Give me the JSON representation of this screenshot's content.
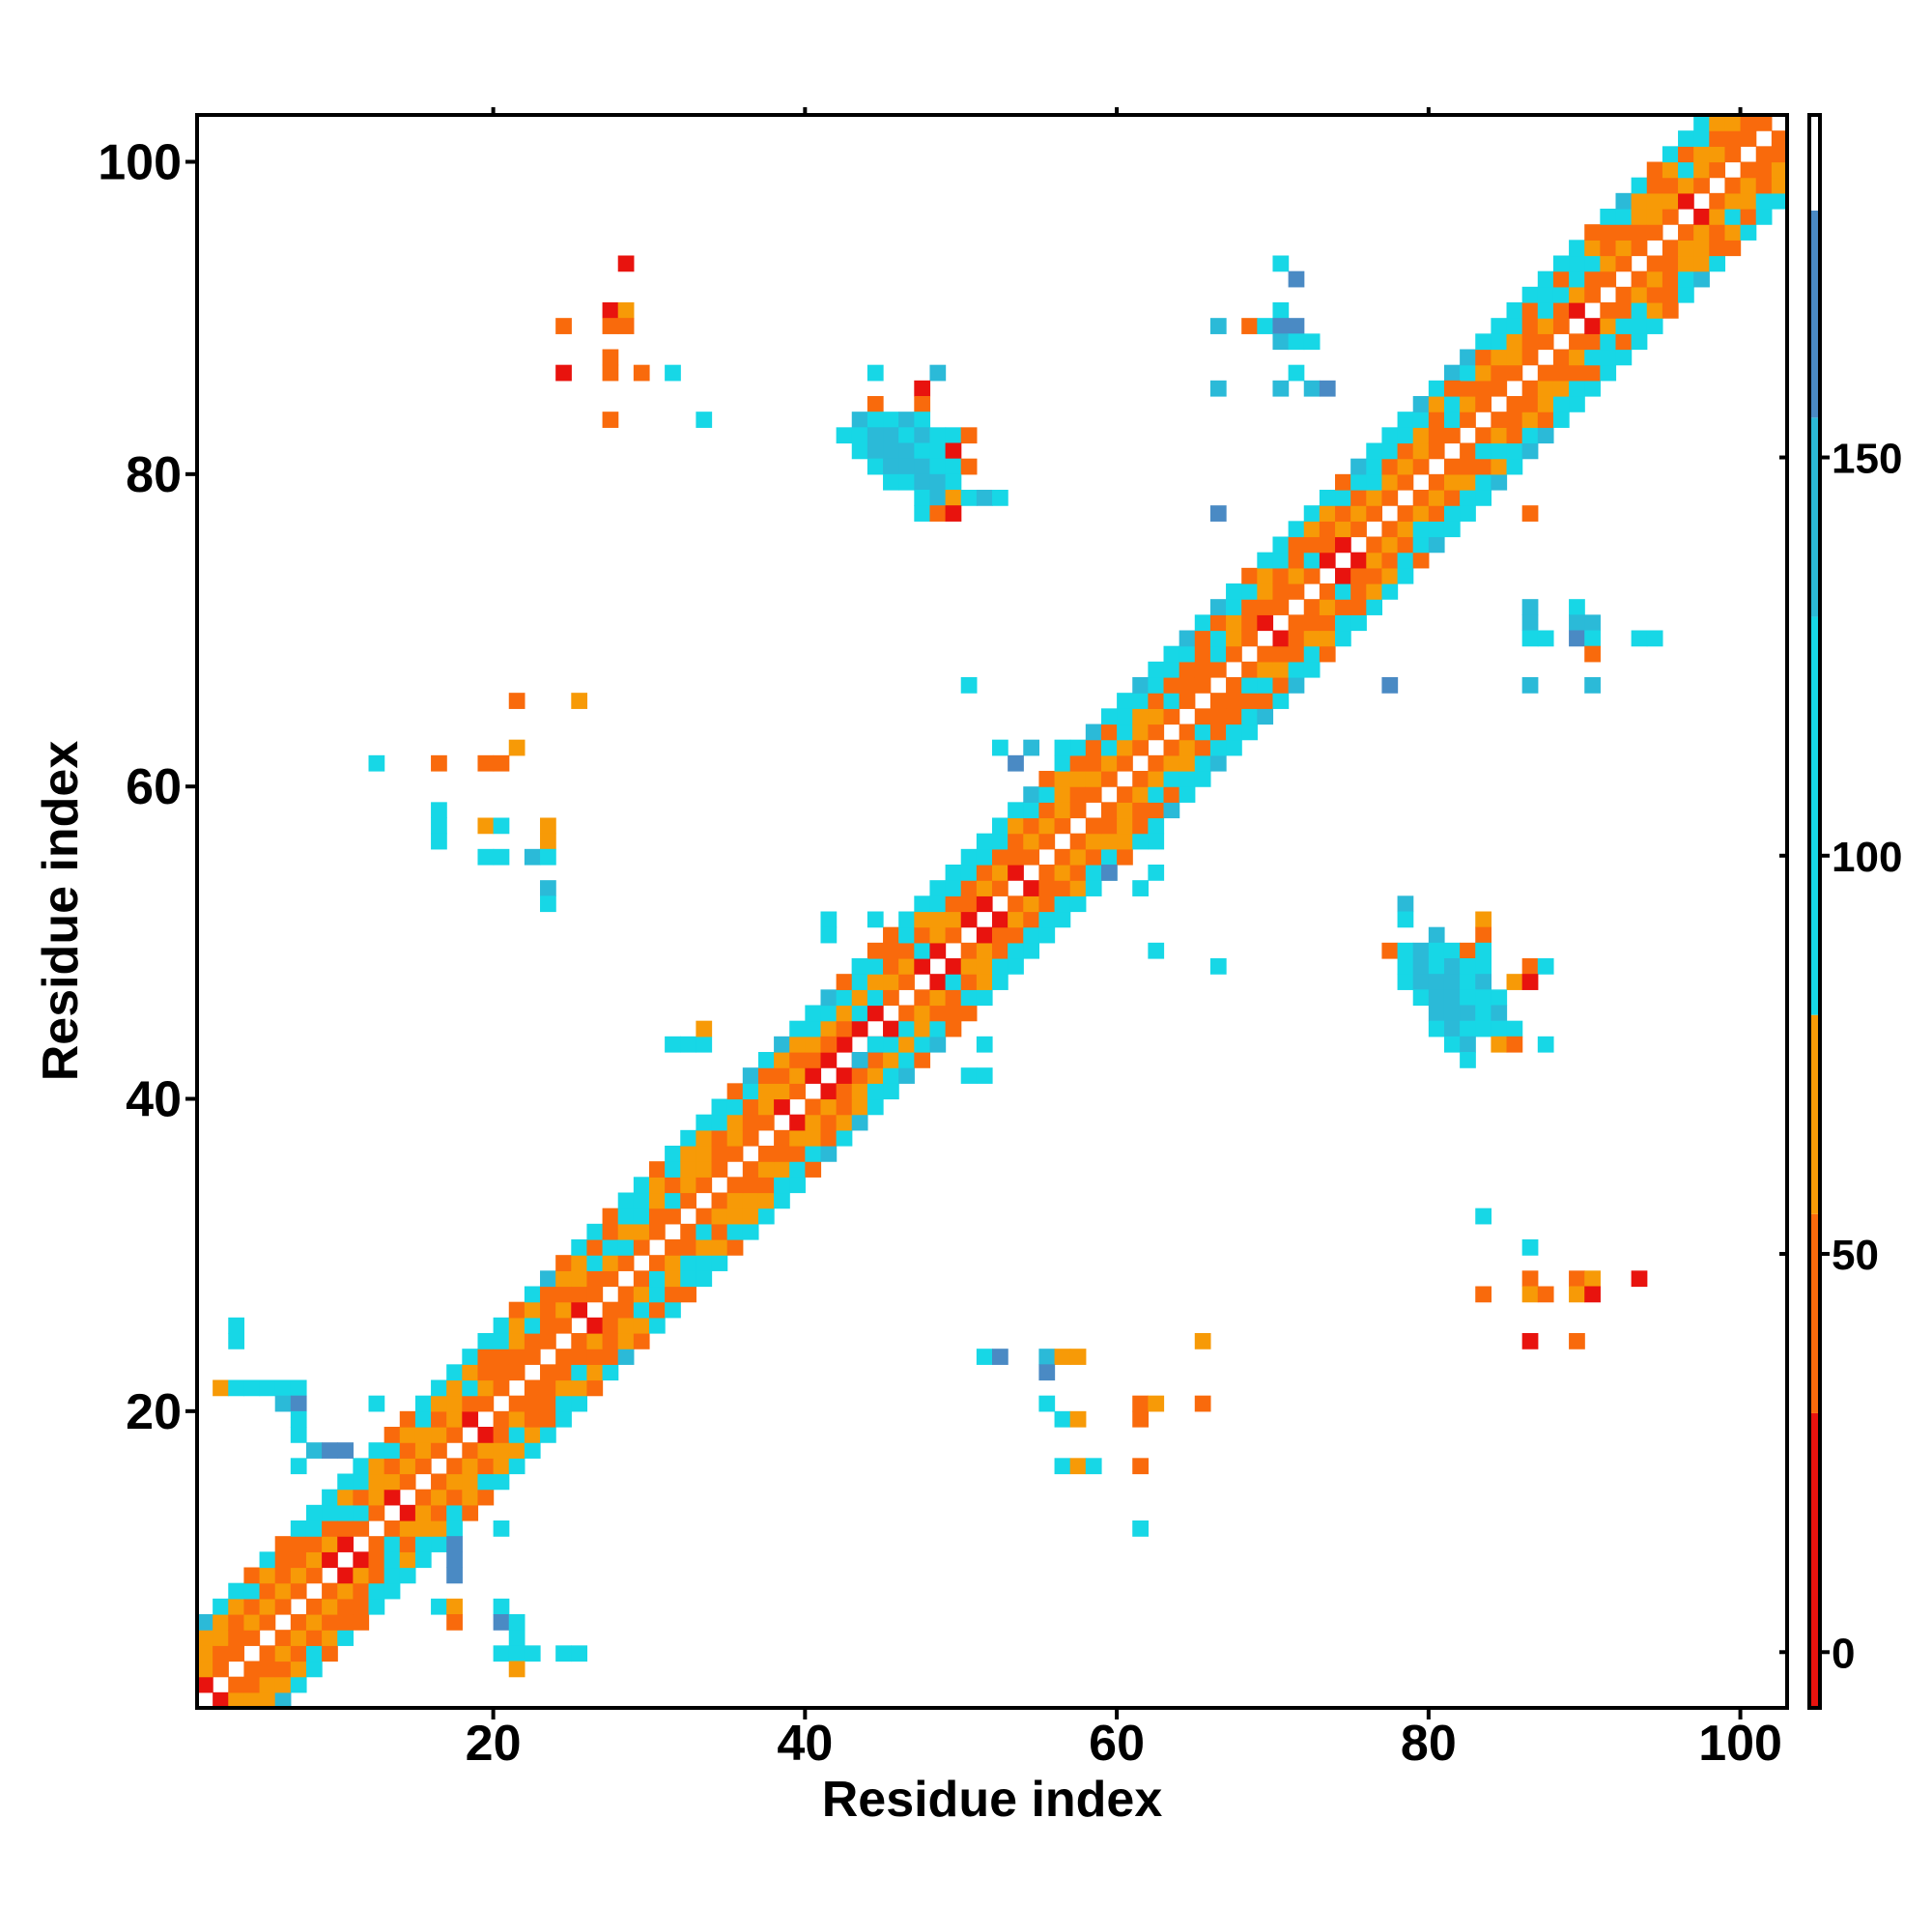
{
  "chart_data": {
    "type": "heatmap",
    "title": "",
    "xlabel": "Residue index",
    "ylabel": "Residue index",
    "xlim": [
      1,
      103
    ],
    "ylim": [
      1,
      103
    ],
    "x_ticks": [
      20,
      40,
      60,
      80,
      100
    ],
    "y_ticks": [
      20,
      40,
      60,
      80,
      100
    ],
    "colorbar": {
      "ticks": [
        0,
        50,
        100,
        150
      ],
      "range": [
        -7,
        193
      ],
      "bands": [
        {
          "from": -7,
          "to": 30,
          "color": "#e8130e"
        },
        {
          "from": 30,
          "to": 55,
          "color": "#f96a0c"
        },
        {
          "from": 55,
          "to": 80,
          "color": "#f79a07"
        },
        {
          "from": 80,
          "to": 130,
          "color": "#17d7e6"
        },
        {
          "from": 130,
          "to": 155,
          "color": "#2bbad8"
        },
        {
          "from": 155,
          "to": 181,
          "color": "#4a8ac4"
        },
        {
          "from": 181,
          "to": 193,
          "color": "#ffffff"
        }
      ]
    },
    "color_scale": {
      "very_low": "#e8130e",
      "low": "#f96a0c",
      "mid_low": "#f79a07",
      "high": "#17d7e6",
      "higher": "#2bbad8",
      "highest": "#4a8ac4"
    },
    "offdiagonal_cells": [
      [
        28,
        93,
        1
      ],
      [
        24,
        89,
        2
      ],
      [
        27,
        90,
        1
      ],
      [
        28,
        90,
        3
      ],
      [
        27,
        89,
        2
      ],
      [
        28,
        89,
        2
      ],
      [
        24,
        86,
        1
      ],
      [
        27,
        87,
        2
      ],
      [
        27,
        86,
        2
      ],
      [
        29,
        86,
        2
      ],
      [
        31,
        86,
        4
      ],
      [
        27,
        83,
        2
      ],
      [
        33,
        83,
        4
      ],
      [
        44,
        86,
        4
      ],
      [
        48,
        86,
        5
      ],
      [
        47,
        85,
        1
      ],
      [
        44,
        84,
        2
      ],
      [
        47,
        84,
        2
      ],
      [
        43,
        83,
        5
      ],
      [
        44,
        83,
        4
      ],
      [
        45,
        83,
        4
      ],
      [
        46,
        83,
        5
      ],
      [
        47,
        83,
        4
      ],
      [
        42,
        82,
        4
      ],
      [
        43,
        82,
        4
      ],
      [
        44,
        82,
        5
      ],
      [
        45,
        82,
        5
      ],
      [
        46,
        82,
        4
      ],
      [
        47,
        82,
        5
      ],
      [
        48,
        82,
        4
      ],
      [
        49,
        82,
        4
      ],
      [
        50,
        82,
        2
      ],
      [
        43,
        81,
        4
      ],
      [
        44,
        81,
        5
      ],
      [
        45,
        81,
        5
      ],
      [
        46,
        81,
        5
      ],
      [
        47,
        81,
        4
      ],
      [
        48,
        81,
        4
      ],
      [
        49,
        81,
        1
      ],
      [
        44,
        80,
        4
      ],
      [
        45,
        80,
        5
      ],
      [
        46,
        80,
        5
      ],
      [
        47,
        80,
        5
      ],
      [
        48,
        80,
        4
      ],
      [
        49,
        80,
        4
      ],
      [
        50,
        80,
        2
      ],
      [
        45,
        79,
        4
      ],
      [
        46,
        79,
        4
      ],
      [
        47,
        79,
        5
      ],
      [
        48,
        79,
        5
      ],
      [
        49,
        79,
        4
      ],
      [
        47,
        78,
        4
      ],
      [
        48,
        78,
        5
      ],
      [
        49,
        78,
        3
      ],
      [
        50,
        78,
        4
      ],
      [
        51,
        78,
        5
      ],
      [
        52,
        78,
        4
      ],
      [
        47,
        77,
        4
      ],
      [
        48,
        77,
        2
      ],
      [
        49,
        77,
        1
      ],
      [
        70,
        93,
        4
      ],
      [
        71,
        92,
        6
      ],
      [
        70,
        90,
        4
      ],
      [
        66,
        89,
        5
      ],
      [
        68,
        89,
        2
      ],
      [
        69,
        89,
        4
      ],
      [
        70,
        89,
        6
      ],
      [
        71,
        89,
        6
      ],
      [
        70,
        88,
        5
      ],
      [
        71,
        88,
        4
      ],
      [
        72,
        88,
        4
      ],
      [
        66,
        85,
        5
      ],
      [
        70,
        85,
        5
      ],
      [
        71,
        86,
        4
      ],
      [
        72,
        85,
        5
      ],
      [
        73,
        85,
        6
      ],
      [
        66,
        77,
        6
      ],
      [
        86,
        77,
        2
      ],
      [
        81,
        85,
        2
      ],
      [
        21,
        65,
        2
      ],
      [
        25,
        65,
        3
      ],
      [
        21,
        62,
        3
      ],
      [
        12,
        61,
        4
      ],
      [
        16,
        61,
        2
      ],
      [
        19,
        61,
        2
      ],
      [
        20,
        61,
        2
      ],
      [
        16,
        58,
        4
      ],
      [
        16,
        57,
        4
      ],
      [
        16,
        56,
        4
      ],
      [
        19,
        57,
        3
      ],
      [
        20,
        57,
        4
      ],
      [
        23,
        57,
        3
      ],
      [
        23,
        56,
        3
      ],
      [
        19,
        55,
        4
      ],
      [
        20,
        55,
        4
      ],
      [
        22,
        55,
        5
      ],
      [
        23,
        55,
        4
      ],
      [
        23,
        53,
        5
      ],
      [
        23,
        52,
        4
      ],
      [
        41,
        51,
        4
      ],
      [
        41,
        50,
        4
      ],
      [
        44,
        51,
        4
      ],
      [
        50,
        66,
        4
      ],
      [
        52,
        62,
        4
      ],
      [
        54,
        62,
        5
      ],
      [
        53,
        61,
        6
      ],
      [
        56,
        62,
        4
      ],
      [
        62,
        56,
        4
      ],
      [
        59,
        54,
        6
      ],
      [
        61,
        53,
        4
      ],
      [
        62,
        54,
        4
      ],
      [
        62,
        49,
        4
      ],
      [
        66,
        48,
        4
      ],
      [
        43,
        48,
        4
      ],
      [
        41,
        43,
        2
      ],
      [
        44,
        43,
        4
      ],
      [
        43,
        42,
        5
      ],
      [
        31,
        43,
        4
      ],
      [
        32,
        43,
        4
      ],
      [
        33,
        43,
        4
      ],
      [
        33,
        44,
        3
      ],
      [
        51,
        43,
        4
      ],
      [
        50,
        41,
        4
      ],
      [
        51,
        41,
        4
      ],
      [
        78,
        52,
        5
      ],
      [
        78,
        51,
        4
      ],
      [
        80,
        50,
        5
      ],
      [
        83,
        51,
        3
      ],
      [
        83,
        50,
        2
      ],
      [
        77,
        49,
        2
      ],
      [
        78,
        49,
        4
      ],
      [
        79,
        49,
        5
      ],
      [
        80,
        49,
        4
      ],
      [
        81,
        49,
        4
      ],
      [
        82,
        49,
        2
      ],
      [
        83,
        49,
        4
      ],
      [
        78,
        48,
        4
      ],
      [
        79,
        48,
        5
      ],
      [
        80,
        48,
        4
      ],
      [
        81,
        48,
        5
      ],
      [
        82,
        48,
        4
      ],
      [
        83,
        48,
        4
      ],
      [
        86,
        48,
        2
      ],
      [
        87,
        48,
        4
      ],
      [
        78,
        47,
        4
      ],
      [
        79,
        47,
        5
      ],
      [
        80,
        47,
        5
      ],
      [
        81,
        47,
        5
      ],
      [
        82,
        47,
        4
      ],
      [
        83,
        47,
        5
      ],
      [
        85,
        47,
        3
      ],
      [
        86,
        47,
        1
      ],
      [
        79,
        46,
        4
      ],
      [
        80,
        46,
        5
      ],
      [
        81,
        46,
        5
      ],
      [
        82,
        46,
        4
      ],
      [
        83,
        46,
        4
      ],
      [
        84,
        46,
        4
      ],
      [
        80,
        45,
        5
      ],
      [
        81,
        45,
        5
      ],
      [
        82,
        45,
        5
      ],
      [
        83,
        45,
        4
      ],
      [
        84,
        45,
        5
      ],
      [
        80,
        44,
        4
      ],
      [
        81,
        44,
        5
      ],
      [
        82,
        44,
        4
      ],
      [
        83,
        44,
        4
      ],
      [
        84,
        44,
        4
      ],
      [
        85,
        44,
        4
      ],
      [
        81,
        43,
        4
      ],
      [
        82,
        43,
        5
      ],
      [
        84,
        43,
        3
      ],
      [
        85,
        43,
        2
      ],
      [
        87,
        43,
        4
      ],
      [
        82,
        42,
        4
      ],
      [
        86,
        71,
        5
      ],
      [
        86,
        70,
        5
      ],
      [
        86,
        69,
        4
      ],
      [
        87,
        69,
        4
      ],
      [
        89,
        71,
        4
      ],
      [
        89,
        70,
        5
      ],
      [
        90,
        70,
        5
      ],
      [
        89,
        69,
        6
      ],
      [
        90,
        69,
        4
      ],
      [
        90,
        68,
        2
      ],
      [
        93,
        69,
        4
      ],
      [
        94,
        69,
        4
      ],
      [
        77,
        66,
        6
      ],
      [
        86,
        66,
        5
      ],
      [
        90,
        66,
        5
      ],
      [
        83,
        32,
        4
      ],
      [
        86,
        30,
        4
      ],
      [
        86,
        28,
        2
      ],
      [
        86,
        27,
        3
      ],
      [
        87,
        27,
        2
      ],
      [
        89,
        28,
        2
      ],
      [
        90,
        28,
        3
      ],
      [
        89,
        27,
        3
      ],
      [
        90,
        27,
        1
      ],
      [
        93,
        28,
        1
      ],
      [
        83,
        27,
        2
      ],
      [
        86,
        24,
        1
      ],
      [
        89,
        24,
        2
      ],
      [
        51,
        23,
        4
      ],
      [
        52,
        23,
        6
      ],
      [
        55,
        23,
        5
      ],
      [
        56,
        23,
        3
      ],
      [
        57,
        23,
        3
      ],
      [
        55,
        22,
        6
      ],
      [
        55,
        20,
        4
      ],
      [
        56,
        19,
        4
      ],
      [
        57,
        19,
        3
      ],
      [
        61,
        20,
        2
      ],
      [
        62,
        20,
        3
      ],
      [
        61,
        19,
        2
      ],
      [
        65,
        24,
        3
      ],
      [
        65,
        20,
        2
      ],
      [
        56,
        16,
        4
      ],
      [
        57,
        16,
        3
      ],
      [
        58,
        16,
        4
      ],
      [
        61,
        16,
        2
      ],
      [
        61,
        12,
        4
      ],
      [
        3,
        25,
        4
      ],
      [
        3,
        24,
        4
      ],
      [
        2,
        21,
        3
      ],
      [
        3,
        21,
        4
      ],
      [
        4,
        21,
        4
      ],
      [
        5,
        21,
        4
      ],
      [
        6,
        21,
        4
      ],
      [
        7,
        21,
        4
      ],
      [
        6,
        20,
        5
      ],
      [
        7,
        20,
        6
      ],
      [
        12,
        20,
        4
      ],
      [
        7,
        19,
        4
      ],
      [
        7,
        18,
        4
      ],
      [
        8,
        17,
        5
      ],
      [
        9,
        17,
        6
      ],
      [
        10,
        17,
        6
      ],
      [
        7,
        16,
        4
      ],
      [
        16,
        7,
        4
      ],
      [
        17,
        7,
        3
      ],
      [
        17,
        6,
        2
      ],
      [
        20,
        7,
        4
      ],
      [
        20,
        6,
        6
      ],
      [
        21,
        6,
        4
      ],
      [
        21,
        5,
        4
      ],
      [
        20,
        4,
        4
      ],
      [
        21,
        4,
        4
      ],
      [
        22,
        4,
        4
      ],
      [
        24,
        4,
        4
      ],
      [
        25,
        4,
        4
      ],
      [
        21,
        3,
        3
      ],
      [
        17,
        11,
        6
      ],
      [
        17,
        10,
        6
      ],
      [
        17,
        9,
        6
      ],
      [
        20,
        12,
        4
      ]
    ]
  }
}
